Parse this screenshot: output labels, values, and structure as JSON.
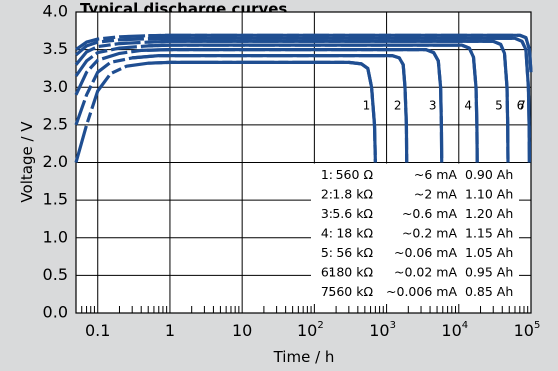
{
  "chart_data": {
    "type": "line",
    "title": "Typical discharge curves",
    "xlabel": "Time / h",
    "ylabel": "Voltage / V",
    "xscale": "log",
    "xlim": [
      0.05,
      100000
    ],
    "ylim": [
      0.0,
      4.0
    ],
    "xticks": [
      {
        "base": "0.1",
        "exp": ""
      },
      {
        "base": "1",
        "exp": ""
      },
      {
        "base": "10",
        "exp": ""
      },
      {
        "base": "10",
        "exp": "2"
      },
      {
        "base": "10",
        "exp": "3"
      },
      {
        "base": "10",
        "exp": "4"
      },
      {
        "base": "10",
        "exp": "5"
      }
    ],
    "yticks": [
      "0.0",
      "0.5",
      "1.0",
      "1.5",
      "2.0",
      "2.5",
      "3.0",
      "3.5",
      "4.0"
    ],
    "grid": true,
    "line_color": "#1f4e91",
    "background_color": "#ffffff",
    "series": [
      {
        "name": "1",
        "load": "560 Ω",
        "current": "~6 mA",
        "capacity": "0.90 Ah",
        "plateau_v": 3.33,
        "end_time_h": 700,
        "start_v": 2.0,
        "points": [
          [
            0.05,
            2.0
          ],
          [
            0.07,
            2.5
          ],
          [
            0.1,
            2.95
          ],
          [
            0.15,
            3.18
          ],
          [
            0.25,
            3.28
          ],
          [
            0.5,
            3.32
          ],
          [
            1,
            3.33
          ],
          [
            300,
            3.33
          ],
          [
            450,
            3.31
          ],
          [
            550,
            3.25
          ],
          [
            620,
            3.0
          ],
          [
            680,
            2.5
          ],
          [
            700,
            2.0
          ]
        ]
      },
      {
        "name": "2",
        "load": "1.8 kΩ",
        "current": "~2 mA",
        "capacity": "1.10 Ah",
        "plateau_v": 3.42,
        "end_time_h": 1900,
        "start_v": 2.5,
        "points": [
          [
            0.05,
            2.5
          ],
          [
            0.07,
            2.9
          ],
          [
            0.1,
            3.2
          ],
          [
            0.15,
            3.33
          ],
          [
            0.3,
            3.39
          ],
          [
            0.7,
            3.42
          ],
          [
            1200,
            3.42
          ],
          [
            1500,
            3.39
          ],
          [
            1700,
            3.3
          ],
          [
            1800,
            3.0
          ],
          [
            1880,
            2.5
          ],
          [
            1900,
            2.0
          ]
        ]
      },
      {
        "name": "3",
        "load": "5.6 kΩ",
        "current": "~0.6 mA",
        "capacity": "1.20 Ah",
        "plateau_v": 3.5,
        "end_time_h": 5800,
        "start_v": 2.9,
        "points": [
          [
            0.05,
            2.9
          ],
          [
            0.07,
            3.2
          ],
          [
            0.1,
            3.36
          ],
          [
            0.2,
            3.45
          ],
          [
            0.4,
            3.49
          ],
          [
            1,
            3.5
          ],
          [
            3500,
            3.5
          ],
          [
            4500,
            3.46
          ],
          [
            5200,
            3.35
          ],
          [
            5600,
            3.0
          ],
          [
            5750,
            2.5
          ],
          [
            5800,
            2.0
          ]
        ]
      },
      {
        "name": "4",
        "load": "18 kΩ",
        "current": "~0.2 mA",
        "capacity": "1.15 Ah",
        "plateau_v": 3.56,
        "end_time_h": 18000,
        "start_v": 3.15,
        "points": [
          [
            0.05,
            3.15
          ],
          [
            0.07,
            3.35
          ],
          [
            0.1,
            3.46
          ],
          [
            0.2,
            3.52
          ],
          [
            0.5,
            3.55
          ],
          [
            1,
            3.56
          ],
          [
            11000,
            3.56
          ],
          [
            14000,
            3.52
          ],
          [
            16000,
            3.4
          ],
          [
            17300,
            3.0
          ],
          [
            17800,
            2.5
          ],
          [
            18000,
            2.0
          ]
        ]
      },
      {
        "name": "5",
        "load": "56 kΩ",
        "current": "~0.06 mA",
        "capacity": "1.05 Ah",
        "plateau_v": 3.61,
        "end_time_h": 48000,
        "start_v": 3.3,
        "points": [
          [
            0.05,
            3.3
          ],
          [
            0.07,
            3.47
          ],
          [
            0.1,
            3.54
          ],
          [
            0.2,
            3.58
          ],
          [
            0.5,
            3.6
          ],
          [
            1,
            3.61
          ],
          [
            30000,
            3.61
          ],
          [
            38000,
            3.57
          ],
          [
            43000,
            3.45
          ],
          [
            46500,
            3.0
          ],
          [
            47500,
            2.5
          ],
          [
            48000,
            2.0
          ]
        ]
      },
      {
        "name": "6",
        "load": "180 kΩ",
        "current": "~0.02 mA",
        "capacity": "0.95 Ah",
        "plateau_v": 3.65,
        "end_time_h": 95000,
        "start_v": 3.43,
        "points": [
          [
            0.05,
            3.43
          ],
          [
            0.07,
            3.55
          ],
          [
            0.1,
            3.6
          ],
          [
            0.2,
            3.63
          ],
          [
            0.5,
            3.645
          ],
          [
            1,
            3.65
          ],
          [
            60000,
            3.65
          ],
          [
            75000,
            3.61
          ],
          [
            85000,
            3.5
          ],
          [
            92000,
            3.0
          ],
          [
            94000,
            2.5
          ],
          [
            95000,
            2.0
          ]
        ]
      },
      {
        "name": "7",
        "load": "560 kΩ",
        "current": "~0.006 mA",
        "capacity": "0.85 Ah",
        "plateau_v": 3.69,
        "end_time_h": 100000,
        "start_v": 3.5,
        "points": [
          [
            0.05,
            3.5
          ],
          [
            0.07,
            3.6
          ],
          [
            0.1,
            3.64
          ],
          [
            0.2,
            3.67
          ],
          [
            0.5,
            3.685
          ],
          [
            1,
            3.69
          ],
          [
            70000,
            3.69
          ],
          [
            85000,
            3.66
          ],
          [
            95000,
            3.5
          ],
          [
            100000,
            3.2
          ]
        ]
      }
    ]
  }
}
